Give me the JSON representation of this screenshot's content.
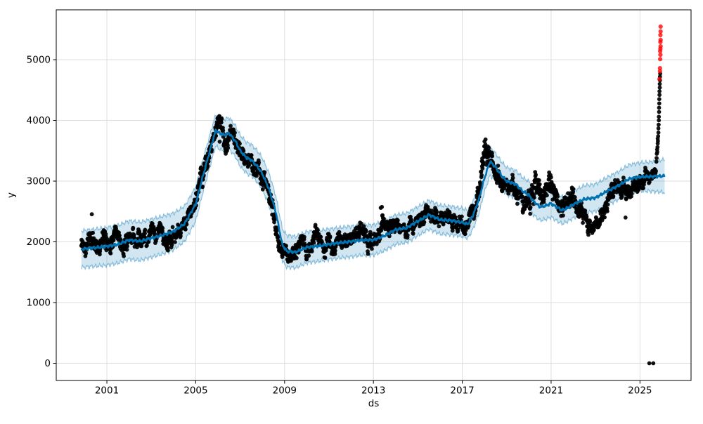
{
  "chart_data": {
    "type": "scatter",
    "title": "",
    "xlabel": "ds",
    "ylabel": "y",
    "legend": "none",
    "grid": true,
    "x_ticks": [
      2001,
      2005,
      2009,
      2013,
      2017,
      2021,
      2025
    ],
    "y_ticks": [
      0,
      1000,
      2000,
      3000,
      4000,
      5000
    ],
    "xlim": [
      1998.72,
      2027.3
    ],
    "ylim": [
      -283,
      5821
    ],
    "colors": {
      "observations": "#000000",
      "forecast_line": "#0072B2",
      "band_fill": "rgba(0,114,178,0.18)",
      "band_edge": "rgba(0,114,178,0.42)",
      "anomalies": "#ff0000",
      "grid": "#dedede",
      "spine": "#000000"
    },
    "forecast": {
      "comment": "anchors = [year, yhat, band_half_width]; dark blue line with light blue uncertainty band, band widens after history ends ~2025.45",
      "x_start": 1999.85,
      "x_end": 2026.12,
      "anchors": [
        [
          1999.85,
          1880,
          300
        ],
        [
          2000.5,
          1905,
          305
        ],
        [
          2001,
          1925,
          310
        ],
        [
          2001.5,
          1960,
          310
        ],
        [
          2002,
          2030,
          315
        ],
        [
          2002.5,
          2010,
          315
        ],
        [
          2003,
          2060,
          312
        ],
        [
          2003.5,
          2110,
          310
        ],
        [
          2004,
          2170,
          300
        ],
        [
          2004.5,
          2300,
          290
        ],
        [
          2005,
          2620,
          280
        ],
        [
          2005.3,
          3050,
          270
        ],
        [
          2005.6,
          3450,
          265
        ],
        [
          2005.9,
          3840,
          260
        ],
        [
          2006.1,
          3780,
          260
        ],
        [
          2006.3,
          3760,
          258
        ],
        [
          2006.5,
          3790,
          255
        ],
        [
          2006.8,
          3650,
          255
        ],
        [
          2007,
          3500,
          255
        ],
        [
          2007.3,
          3380,
          255
        ],
        [
          2007.5,
          3350,
          255
        ],
        [
          2007.8,
          3230,
          258
        ],
        [
          2008,
          3120,
          260
        ],
        [
          2008.3,
          2870,
          262
        ],
        [
          2008.6,
          2500,
          265
        ],
        [
          2008.9,
          1950,
          265
        ],
        [
          2009.1,
          1845,
          262
        ],
        [
          2009.5,
          1830,
          258
        ],
        [
          2010,
          1910,
          255
        ],
        [
          2010.5,
          1930,
          252
        ],
        [
          2011,
          1960,
          250
        ],
        [
          2011.5,
          1985,
          250
        ],
        [
          2012,
          2005,
          250
        ],
        [
          2012.5,
          2030,
          248
        ],
        [
          2013,
          2030,
          248
        ],
        [
          2013.5,
          2100,
          245
        ],
        [
          2014,
          2200,
          242
        ],
        [
          2014.5,
          2230,
          240
        ],
        [
          2015,
          2340,
          238
        ],
        [
          2015.5,
          2445,
          236
        ],
        [
          2016,
          2365,
          235
        ],
        [
          2016.5,
          2350,
          233
        ],
        [
          2017,
          2320,
          230
        ],
        [
          2017.25,
          2290,
          230
        ],
        [
          2017.5,
          2450,
          230
        ],
        [
          2017.75,
          2700,
          230
        ],
        [
          2018,
          3050,
          230
        ],
        [
          2018.25,
          3325,
          228
        ],
        [
          2018.5,
          3230,
          228
        ],
        [
          2018.75,
          3100,
          226
        ],
        [
          2019,
          3000,
          225
        ],
        [
          2019.4,
          2950,
          225
        ],
        [
          2019.7,
          2840,
          224
        ],
        [
          2020,
          2770,
          224
        ],
        [
          2020.2,
          2670,
          224
        ],
        [
          2020.5,
          2575,
          223
        ],
        [
          2020.75,
          2595,
          223
        ],
        [
          2021,
          2630,
          222
        ],
        [
          2021.25,
          2570,
          222
        ],
        [
          2021.5,
          2520,
          222
        ],
        [
          2021.75,
          2560,
          222
        ],
        [
          2022,
          2615,
          222
        ],
        [
          2022.5,
          2705,
          223
        ],
        [
          2023,
          2725,
          225
        ],
        [
          2023.5,
          2830,
          227
        ],
        [
          2024,
          2920,
          229
        ],
        [
          2024.5,
          3035,
          231
        ],
        [
          2025,
          3070,
          234
        ],
        [
          2025.45,
          3075,
          240
        ],
        [
          2026.12,
          3085,
          272
        ]
      ],
      "wiggle": {
        "line_amp": 26,
        "edge_amp": 40,
        "freq1": 5.3,
        "freq2": 11.7
      }
    },
    "observations": {
      "comment": "dense daily black dots; anchors = [year, cluster_mid, half_spread]",
      "x_start": 1999.85,
      "x_end": 2025.72,
      "step": 0.01,
      "seed": 42,
      "anchors": [
        [
          1999.85,
          1930,
          330
        ],
        [
          2000.2,
          2050,
          280
        ],
        [
          2000.5,
          1960,
          300
        ],
        [
          2001,
          2000,
          300
        ],
        [
          2001.4,
          2110,
          260
        ],
        [
          2001.8,
          1950,
          280
        ],
        [
          2002.2,
          2090,
          280
        ],
        [
          2002.6,
          1960,
          280
        ],
        [
          2003,
          2080,
          270
        ],
        [
          2003.4,
          2180,
          240
        ],
        [
          2003.8,
          2050,
          260
        ],
        [
          2004.2,
          2180,
          240
        ],
        [
          2004.6,
          2320,
          220
        ],
        [
          2005,
          2650,
          280
        ],
        [
          2005.3,
          3080,
          300
        ],
        [
          2005.6,
          3480,
          300
        ],
        [
          2005.9,
          3900,
          280
        ],
        [
          2006.1,
          3950,
          270
        ],
        [
          2006.35,
          3680,
          300
        ],
        [
          2006.6,
          3780,
          250
        ],
        [
          2006.9,
          3550,
          280
        ],
        [
          2007.2,
          3400,
          280
        ],
        [
          2007.5,
          3350,
          270
        ],
        [
          2007.8,
          3200,
          280
        ],
        [
          2008.1,
          3000,
          300
        ],
        [
          2008.4,
          2600,
          300
        ],
        [
          2008.7,
          2100,
          280
        ],
        [
          2009,
          1850,
          250
        ],
        [
          2009.3,
          1800,
          230
        ],
        [
          2009.7,
          1950,
          240
        ],
        [
          2010,
          1900,
          250
        ],
        [
          2010.4,
          2080,
          240
        ],
        [
          2010.8,
          1920,
          260
        ],
        [
          2011.2,
          1980,
          260
        ],
        [
          2011.6,
          2090,
          240
        ],
        [
          2012,
          2000,
          280
        ],
        [
          2012.4,
          2230,
          260
        ],
        [
          2012.8,
          2040,
          260
        ],
        [
          2013.1,
          1960,
          240
        ],
        [
          2013.4,
          2300,
          300
        ],
        [
          2013.7,
          2160,
          260
        ],
        [
          2014,
          2260,
          240
        ],
        [
          2014.4,
          2160,
          240
        ],
        [
          2014.8,
          2340,
          240
        ],
        [
          2015.2,
          2420,
          260
        ],
        [
          2015.6,
          2500,
          260
        ],
        [
          2016,
          2360,
          260
        ],
        [
          2016.4,
          2420,
          240
        ],
        [
          2016.8,
          2280,
          240
        ],
        [
          2017.1,
          2300,
          250
        ],
        [
          2017.5,
          2480,
          260
        ],
        [
          2017.8,
          2850,
          350
        ],
        [
          2018.05,
          3650,
          400
        ],
        [
          2018.25,
          3350,
          380
        ],
        [
          2018.5,
          3150,
          300
        ],
        [
          2018.8,
          3000,
          280
        ],
        [
          2019.1,
          2920,
          280
        ],
        [
          2019.5,
          2850,
          280
        ],
        [
          2019.8,
          2550,
          300
        ],
        [
          2020.05,
          2650,
          350
        ],
        [
          2020.3,
          2900,
          450
        ],
        [
          2020.6,
          2700,
          300
        ],
        [
          2020.9,
          2950,
          380
        ],
        [
          2021.2,
          2700,
          300
        ],
        [
          2021.5,
          2580,
          280
        ],
        [
          2021.9,
          2650,
          280
        ],
        [
          2022.3,
          2550,
          280
        ],
        [
          2022.7,
          2320,
          260
        ],
        [
          2023,
          2250,
          220
        ],
        [
          2023.3,
          2500,
          280
        ],
        [
          2023.7,
          2750,
          280
        ],
        [
          2024,
          2800,
          280
        ],
        [
          2024.4,
          2850,
          260
        ],
        [
          2024.8,
          2950,
          240
        ],
        [
          2025.1,
          3000,
          240
        ],
        [
          2025.4,
          2980,
          220
        ],
        [
          2025.72,
          3150,
          250
        ]
      ],
      "extra_points": [
        [
          2000.32,
          2455
        ],
        [
          2006.08,
          3650
        ],
        [
          2013.33,
          2560
        ],
        [
          2013.38,
          2575
        ],
        [
          2024.35,
          2400
        ]
      ],
      "zero_points": [
        [
          2025.42,
          0
        ],
        [
          2025.6,
          0
        ]
      ],
      "end_spike_points": [
        [
          2025.74,
          3320
        ],
        [
          2025.75,
          3380
        ],
        [
          2025.76,
          3450
        ],
        [
          2025.77,
          3520
        ],
        [
          2025.78,
          3480
        ],
        [
          2025.79,
          3560
        ],
        [
          2025.8,
          3620
        ],
        [
          2025.8,
          3700
        ],
        [
          2025.81,
          3660
        ],
        [
          2025.82,
          3740
        ],
        [
          2025.83,
          3800
        ],
        [
          2025.83,
          3870
        ],
        [
          2025.84,
          3930
        ],
        [
          2025.85,
          4000
        ],
        [
          2025.85,
          4060
        ],
        [
          2025.86,
          4140
        ],
        [
          2025.86,
          4210
        ],
        [
          2025.87,
          4280
        ],
        [
          2025.87,
          4350
        ],
        [
          2025.88,
          4420
        ],
        [
          2025.88,
          4480
        ],
        [
          2025.89,
          4540
        ],
        [
          2025.89,
          4600
        ],
        [
          2025.9,
          4660
        ],
        [
          2025.9,
          4720
        ],
        [
          2025.91,
          4770
        ]
      ]
    },
    "anomalies_red": [
      [
        2025.88,
        4680
      ],
      [
        2025.9,
        4810
      ],
      [
        2025.9,
        4860
      ],
      [
        2025.91,
        5010
      ],
      [
        2025.92,
        5080
      ],
      [
        2025.91,
        5140
      ],
      [
        2025.92,
        5180
      ],
      [
        2025.93,
        5220
      ],
      [
        2025.92,
        5290
      ],
      [
        2025.93,
        5325
      ],
      [
        2025.92,
        5405
      ],
      [
        2025.93,
        5465
      ],
      [
        2025.93,
        5545
      ]
    ]
  }
}
